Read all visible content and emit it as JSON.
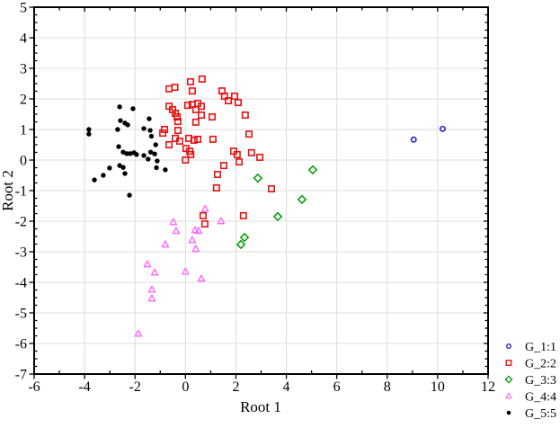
{
  "chart_data": {
    "type": "scatter",
    "title": "",
    "xlabel": "Root 1",
    "ylabel": "Root 2",
    "xlim": [
      -6,
      12
    ],
    "ylim": [
      -7,
      5
    ],
    "x_ticks": [
      -6,
      -4,
      -2,
      0,
      2,
      4,
      6,
      8,
      10,
      12
    ],
    "y_ticks": [
      5,
      4,
      3,
      2,
      1,
      0,
      -1,
      -2,
      -3,
      -4,
      -5,
      -6,
      -7
    ],
    "x_minor_step": 1,
    "y_minor_step": 0.25,
    "grid": "major",
    "legend_position": "outside-bottom-right",
    "colors": {
      "grid": "#dcdcdc",
      "axis": "#000000",
      "background": "#ffffff"
    },
    "series": [
      {
        "name": "G_1:1",
        "marker": "circle-open",
        "color": "#2222cc",
        "points": [
          [
            9.05,
            0.67
          ],
          [
            10.2,
            1.02
          ]
        ]
      },
      {
        "name": "G_2:2",
        "marker": "square-open",
        "color": "#e51212",
        "points": [
          [
            -0.65,
            2.33
          ],
          [
            -0.42,
            2.38
          ],
          [
            0.2,
            2.56
          ],
          [
            0.66,
            2.65
          ],
          [
            0.27,
            2.26
          ],
          [
            1.45,
            2.26
          ],
          [
            1.55,
            2.09
          ],
          [
            1.7,
            1.94
          ],
          [
            1.95,
            2.09
          ],
          [
            2.09,
            1.88
          ],
          [
            0.09,
            1.79
          ],
          [
            0.27,
            1.82
          ],
          [
            0.49,
            1.85
          ],
          [
            0.63,
            1.76
          ],
          [
            0.41,
            1.65
          ],
          [
            -0.65,
            1.76
          ],
          [
            -0.51,
            1.65
          ],
          [
            -0.4,
            1.53
          ],
          [
            -0.33,
            1.41
          ],
          [
            -0.3,
            1.26
          ],
          [
            0.63,
            1.47
          ],
          [
            0.41,
            1.24
          ],
          [
            1.06,
            1.41
          ],
          [
            2.37,
            1.47
          ],
          [
            -0.83,
            1.0
          ],
          [
            -0.9,
            0.88
          ],
          [
            -0.3,
            0.97
          ],
          [
            2.52,
            0.85
          ],
          [
            -0.4,
            0.71
          ],
          [
            -0.23,
            0.62
          ],
          [
            -0.65,
            0.5
          ],
          [
            0.13,
            0.71
          ],
          [
            0.34,
            0.65
          ],
          [
            0.49,
            0.68
          ],
          [
            1.09,
            0.68
          ],
          [
            0.02,
            0.38
          ],
          [
            0.17,
            0.29
          ],
          [
            0.21,
            0.18
          ],
          [
            0.0,
            0.0
          ],
          [
            1.91,
            0.29
          ],
          [
            2.05,
            0.18
          ],
          [
            2.13,
            -0.06
          ],
          [
            2.62,
            0.24
          ],
          [
            2.95,
            0.09
          ],
          [
            1.52,
            -0.18
          ],
          [
            1.27,
            -0.47
          ],
          [
            3.41,
            -0.94
          ],
          [
            1.23,
            -0.91
          ],
          [
            0.7,
            -1.82
          ],
          [
            0.77,
            -2.09
          ],
          [
            2.3,
            -1.82
          ]
        ]
      },
      {
        "name": "G_3:3",
        "marker": "diamond-open",
        "color": "#009900",
        "points": [
          [
            2.87,
            -0.59
          ],
          [
            5.05,
            -0.32
          ],
          [
            4.62,
            -1.29
          ],
          [
            3.66,
            -1.85
          ],
          [
            2.34,
            -2.53
          ],
          [
            2.2,
            -2.76
          ]
        ]
      },
      {
        "name": "G_4:4",
        "marker": "triangle-open",
        "color": "#ff66ff",
        "points": [
          [
            0.78,
            -1.6
          ],
          [
            -0.48,
            -2.03
          ],
          [
            1.41,
            -2.0
          ],
          [
            -0.37,
            -2.32
          ],
          [
            0.38,
            -2.29
          ],
          [
            0.52,
            -2.32
          ],
          [
            -0.8,
            -2.76
          ],
          [
            0.27,
            -2.62
          ],
          [
            0.41,
            -2.91
          ],
          [
            -1.51,
            -3.41
          ],
          [
            -1.22,
            -3.68
          ],
          [
            0.0,
            -3.65
          ],
          [
            0.63,
            -3.88
          ],
          [
            -1.33,
            -4.24
          ],
          [
            -1.33,
            -4.53
          ],
          [
            -1.87,
            -5.68
          ]
        ]
      },
      {
        "name": "G_5:5",
        "marker": "circle-filled",
        "color": "#000000",
        "points": [
          [
            -2.61,
            1.74
          ],
          [
            -2.08,
            1.68
          ],
          [
            -2.58,
            1.29
          ],
          [
            -2.4,
            1.21
          ],
          [
            -2.29,
            1.15
          ],
          [
            -1.44,
            1.35
          ],
          [
            -3.83,
            1.0
          ],
          [
            -3.83,
            0.85
          ],
          [
            -2.69,
            1.0
          ],
          [
            -1.65,
            1.03
          ],
          [
            -1.4,
            0.97
          ],
          [
            -1.35,
            0.78
          ],
          [
            -1.18,
            0.5
          ],
          [
            -2.65,
            0.44
          ],
          [
            -2.47,
            0.26
          ],
          [
            -2.33,
            0.21
          ],
          [
            -2.19,
            0.21
          ],
          [
            -2.04,
            0.24
          ],
          [
            -1.94,
            0.18
          ],
          [
            -1.65,
            0.15
          ],
          [
            -1.38,
            0.26
          ],
          [
            -1.22,
            0.2
          ],
          [
            -1.48,
            0.03
          ],
          [
            -1.12,
            -0.03
          ],
          [
            -2.61,
            -0.18
          ],
          [
            -2.47,
            -0.24
          ],
          [
            -3.01,
            -0.26
          ],
          [
            -2.4,
            -0.44
          ],
          [
            -3.26,
            -0.5
          ],
          [
            -3.61,
            -0.65
          ],
          [
            -1.15,
            -0.25
          ],
          [
            -0.8,
            -0.32
          ],
          [
            -2.22,
            -1.15
          ]
        ]
      }
    ]
  }
}
